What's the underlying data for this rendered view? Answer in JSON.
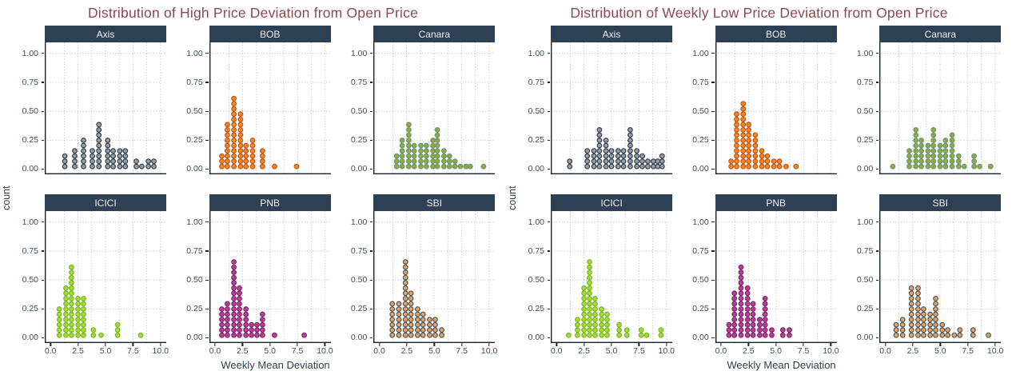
{
  "colors": {
    "title": "#8F474E",
    "strip_bg": "#2E4053",
    "strip_text": "#F2F3F4",
    "axis_text": "#3F4D5A",
    "axis_title": "#2F3E4E",
    "grid": "#AFB4BA",
    "axis_line": "#16232F",
    "background": "#FFFFFF"
  },
  "chart_data": [
    {
      "type": "dotplot",
      "title": "Distribution of High Price Deviation from Open Price",
      "xlabel": "Weekly Mean Deviation",
      "ylabel": "count",
      "xlim": [
        0,
        10
      ],
      "ylim": [
        0,
        1
      ],
      "rows": 2,
      "cols": 3,
      "grid_style": "dotted",
      "x_ticks": [
        {
          "v": 0,
          "label": "0.0"
        },
        {
          "v": 2.5,
          "label": "2.5"
        },
        {
          "v": 5,
          "label": "5.0"
        },
        {
          "v": 7.5,
          "label": "7.5"
        },
        {
          "v": 10,
          "label": "10.0"
        }
      ],
      "y_ticks": [
        {
          "v": 1.0,
          "label": "1.00"
        },
        {
          "v": 0.75,
          "label": "0.75"
        },
        {
          "v": 0.5,
          "label": "0.50"
        },
        {
          "v": 0.25,
          "label": "0.25"
        },
        {
          "v": 0.0,
          "label": "0.00"
        }
      ],
      "dot_height_units": 0.0435,
      "facets": [
        {
          "label": "Axis",
          "fill": "#97A0AA",
          "stroke": "#39424E",
          "stacks": [
            [
              1.3,
              3
            ],
            [
              2.2,
              4
            ],
            [
              3.0,
              6
            ],
            [
              3.8,
              4
            ],
            [
              4.4,
              9
            ],
            [
              5.2,
              6
            ],
            [
              5.7,
              4
            ],
            [
              6.3,
              4
            ],
            [
              6.8,
              4
            ],
            [
              7.8,
              2
            ],
            [
              8.3,
              1
            ],
            [
              8.9,
              2
            ],
            [
              9.4,
              2
            ]
          ]
        },
        {
          "label": "BOB",
          "fill": "#F6881F",
          "stroke": "#C2571B",
          "stacks": [
            [
              0.6,
              3
            ],
            [
              1.1,
              9
            ],
            [
              1.7,
              14
            ],
            [
              2.3,
              11
            ],
            [
              2.8,
              5
            ],
            [
              3.4,
              6
            ],
            [
              4.3,
              4
            ],
            [
              5.4,
              1
            ],
            [
              7.4,
              1
            ]
          ]
        },
        {
          "label": "Canara",
          "fill": "#AB9C47",
          "stroke": "#57A169",
          "stacks": [
            [
              1.6,
              3
            ],
            [
              2.1,
              6
            ],
            [
              2.7,
              9
            ],
            [
              3.2,
              5
            ],
            [
              3.8,
              5
            ],
            [
              4.3,
              5
            ],
            [
              4.9,
              6
            ],
            [
              5.3,
              8
            ],
            [
              5.9,
              4
            ],
            [
              6.4,
              3
            ],
            [
              6.9,
              2
            ],
            [
              7.4,
              1
            ],
            [
              7.9,
              1
            ],
            [
              8.3,
              1
            ],
            [
              9.5,
              1
            ]
          ]
        },
        {
          "label": "ICICI",
          "fill": "#A6DC30",
          "stroke": "#7DB82B",
          "stacks": [
            [
              0.8,
              6
            ],
            [
              1.4,
              10
            ],
            [
              1.9,
              14
            ],
            [
              2.5,
              8
            ],
            [
              3.0,
              8
            ],
            [
              3.9,
              2
            ],
            [
              4.6,
              1
            ],
            [
              6.1,
              3
            ],
            [
              8.2,
              1
            ]
          ]
        },
        {
          "label": "PNB",
          "fill": "#BC3D9E",
          "stroke": "#7E2968",
          "stacks": [
            [
              0.6,
              6
            ],
            [
              1.1,
              7
            ],
            [
              1.7,
              15
            ],
            [
              2.2,
              10
            ],
            [
              2.8,
              6
            ],
            [
              3.3,
              3
            ],
            [
              3.8,
              3
            ],
            [
              4.3,
              5
            ],
            [
              5.4,
              1
            ],
            [
              8.1,
              1
            ]
          ]
        },
        {
          "label": "SBI",
          "fill": "#F0A355",
          "stroke": "#4E5A66",
          "stacks": [
            [
              1.2,
              7
            ],
            [
              1.8,
              7
            ],
            [
              2.4,
              15
            ],
            [
              2.9,
              9
            ],
            [
              3.5,
              6
            ],
            [
              4.0,
              5
            ],
            [
              4.6,
              4
            ],
            [
              5.1,
              4
            ],
            [
              5.7,
              2
            ]
          ]
        }
      ]
    },
    {
      "type": "dotplot",
      "title": "Distribution of Weekly Low Price Deviation from Open Price",
      "xlabel": "Weekly Mean Deviation",
      "ylabel": "count",
      "xlim": [
        0,
        10
      ],
      "ylim": [
        0,
        1
      ],
      "rows": 2,
      "cols": 3,
      "grid_style": "dotted",
      "x_ticks": [
        {
          "v": 0,
          "label": "0.0"
        },
        {
          "v": 2.5,
          "label": "2.5"
        },
        {
          "v": 5,
          "label": "5.0"
        },
        {
          "v": 7.5,
          "label": "7.5"
        },
        {
          "v": 10,
          "label": "10.0"
        }
      ],
      "y_ticks": [
        {
          "v": 1.0,
          "label": "1.00"
        },
        {
          "v": 0.75,
          "label": "0.75"
        },
        {
          "v": 0.5,
          "label": "0.50"
        },
        {
          "v": 0.25,
          "label": "0.25"
        },
        {
          "v": 0.0,
          "label": "0.00"
        }
      ],
      "dot_height_units": 0.0435,
      "facets": [
        {
          "label": "Axis",
          "fill": "#97A0AA",
          "stroke": "#39424E",
          "stacks": [
            [
              1.2,
              2
            ],
            [
              2.8,
              4
            ],
            [
              3.4,
              4
            ],
            [
              3.9,
              8
            ],
            [
              4.5,
              6
            ],
            [
              5.0,
              4
            ],
            [
              5.6,
              4
            ],
            [
              6.1,
              4
            ],
            [
              6.7,
              8
            ],
            [
              7.3,
              4
            ],
            [
              7.8,
              3
            ],
            [
              8.3,
              2
            ],
            [
              8.8,
              2
            ],
            [
              9.2,
              2
            ],
            [
              9.6,
              3
            ]
          ]
        },
        {
          "label": "BOB",
          "fill": "#F6881F",
          "stroke": "#C2571B",
          "stacks": [
            [
              0.9,
              2
            ],
            [
              1.4,
              11
            ],
            [
              2.0,
              13
            ],
            [
              2.5,
              9
            ],
            [
              3.1,
              7
            ],
            [
              3.7,
              4
            ],
            [
              4.2,
              3
            ],
            [
              4.8,
              2
            ],
            [
              5.3,
              2
            ],
            [
              5.9,
              1
            ],
            [
              6.8,
              1
            ]
          ]
        },
        {
          "label": "Canara",
          "fill": "#AB9C47",
          "stroke": "#57A169",
          "stacks": [
            [
              0.7,
              1
            ],
            [
              2.2,
              4
            ],
            [
              2.8,
              8
            ],
            [
              3.3,
              6
            ],
            [
              3.9,
              5
            ],
            [
              4.4,
              8
            ],
            [
              5.0,
              5
            ],
            [
              5.5,
              6
            ],
            [
              6.1,
              7
            ],
            [
              6.7,
              3
            ],
            [
              7.2,
              1
            ],
            [
              8.1,
              3
            ],
            [
              8.6,
              1
            ],
            [
              9.6,
              1
            ]
          ]
        },
        {
          "label": "ICICI",
          "fill": "#A6DC30",
          "stroke": "#7DB82B",
          "stacks": [
            [
              1.1,
              1
            ],
            [
              1.9,
              4
            ],
            [
              2.5,
              10
            ],
            [
              3.0,
              15
            ],
            [
              3.5,
              8
            ],
            [
              4.1,
              6
            ],
            [
              4.6,
              5
            ],
            [
              5.7,
              3
            ],
            [
              6.4,
              2
            ],
            [
              7.7,
              2
            ],
            [
              8.2,
              1
            ],
            [
              9.5,
              2
            ]
          ]
        },
        {
          "label": "PNB",
          "fill": "#BC3D9E",
          "stroke": "#7E2968",
          "stacks": [
            [
              0.7,
              3
            ],
            [
              1.2,
              9
            ],
            [
              1.8,
              14
            ],
            [
              2.4,
              10
            ],
            [
              2.9,
              7
            ],
            [
              3.5,
              4
            ],
            [
              4.0,
              8
            ],
            [
              4.6,
              2
            ],
            [
              5.6,
              2
            ],
            [
              6.2,
              2
            ]
          ]
        },
        {
          "label": "SBI",
          "fill": "#F0A355",
          "stroke": "#4E5A66",
          "stacks": [
            [
              1.0,
              3
            ],
            [
              1.6,
              4
            ],
            [
              2.4,
              10
            ],
            [
              3.0,
              10
            ],
            [
              3.5,
              6
            ],
            [
              4.1,
              5
            ],
            [
              4.6,
              8
            ],
            [
              5.2,
              3
            ],
            [
              5.7,
              2
            ],
            [
              6.3,
              1
            ],
            [
              6.8,
              2
            ],
            [
              8.0,
              2
            ],
            [
              9.4,
              1
            ]
          ]
        }
      ]
    }
  ]
}
